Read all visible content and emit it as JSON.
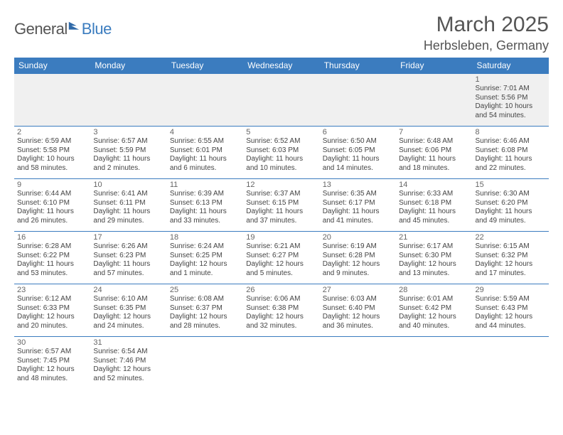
{
  "logo": {
    "part1": "General",
    "part2": "Blue"
  },
  "title": "March 2025",
  "location": "Herbsleben, Germany",
  "colors": {
    "header_bg": "#3b7cbf",
    "header_text": "#ffffff",
    "border": "#3b7cbf",
    "blank_bg": "#f0f0f0",
    "text": "#444444",
    "title_text": "#555555"
  },
  "weekdays": [
    "Sunday",
    "Monday",
    "Tuesday",
    "Wednesday",
    "Thursday",
    "Friday",
    "Saturday"
  ],
  "weeks": [
    [
      null,
      null,
      null,
      null,
      null,
      null,
      {
        "d": "1",
        "sr": "Sunrise: 7:01 AM",
        "ss": "Sunset: 5:56 PM",
        "dl1": "Daylight: 10 hours",
        "dl2": "and 54 minutes."
      }
    ],
    [
      {
        "d": "2",
        "sr": "Sunrise: 6:59 AM",
        "ss": "Sunset: 5:58 PM",
        "dl1": "Daylight: 10 hours",
        "dl2": "and 58 minutes."
      },
      {
        "d": "3",
        "sr": "Sunrise: 6:57 AM",
        "ss": "Sunset: 5:59 PM",
        "dl1": "Daylight: 11 hours",
        "dl2": "and 2 minutes."
      },
      {
        "d": "4",
        "sr": "Sunrise: 6:55 AM",
        "ss": "Sunset: 6:01 PM",
        "dl1": "Daylight: 11 hours",
        "dl2": "and 6 minutes."
      },
      {
        "d": "5",
        "sr": "Sunrise: 6:52 AM",
        "ss": "Sunset: 6:03 PM",
        "dl1": "Daylight: 11 hours",
        "dl2": "and 10 minutes."
      },
      {
        "d": "6",
        "sr": "Sunrise: 6:50 AM",
        "ss": "Sunset: 6:05 PM",
        "dl1": "Daylight: 11 hours",
        "dl2": "and 14 minutes."
      },
      {
        "d": "7",
        "sr": "Sunrise: 6:48 AM",
        "ss": "Sunset: 6:06 PM",
        "dl1": "Daylight: 11 hours",
        "dl2": "and 18 minutes."
      },
      {
        "d": "8",
        "sr": "Sunrise: 6:46 AM",
        "ss": "Sunset: 6:08 PM",
        "dl1": "Daylight: 11 hours",
        "dl2": "and 22 minutes."
      }
    ],
    [
      {
        "d": "9",
        "sr": "Sunrise: 6:44 AM",
        "ss": "Sunset: 6:10 PM",
        "dl1": "Daylight: 11 hours",
        "dl2": "and 26 minutes."
      },
      {
        "d": "10",
        "sr": "Sunrise: 6:41 AM",
        "ss": "Sunset: 6:11 PM",
        "dl1": "Daylight: 11 hours",
        "dl2": "and 29 minutes."
      },
      {
        "d": "11",
        "sr": "Sunrise: 6:39 AM",
        "ss": "Sunset: 6:13 PM",
        "dl1": "Daylight: 11 hours",
        "dl2": "and 33 minutes."
      },
      {
        "d": "12",
        "sr": "Sunrise: 6:37 AM",
        "ss": "Sunset: 6:15 PM",
        "dl1": "Daylight: 11 hours",
        "dl2": "and 37 minutes."
      },
      {
        "d": "13",
        "sr": "Sunrise: 6:35 AM",
        "ss": "Sunset: 6:17 PM",
        "dl1": "Daylight: 11 hours",
        "dl2": "and 41 minutes."
      },
      {
        "d": "14",
        "sr": "Sunrise: 6:33 AM",
        "ss": "Sunset: 6:18 PM",
        "dl1": "Daylight: 11 hours",
        "dl2": "and 45 minutes."
      },
      {
        "d": "15",
        "sr": "Sunrise: 6:30 AM",
        "ss": "Sunset: 6:20 PM",
        "dl1": "Daylight: 11 hours",
        "dl2": "and 49 minutes."
      }
    ],
    [
      {
        "d": "16",
        "sr": "Sunrise: 6:28 AM",
        "ss": "Sunset: 6:22 PM",
        "dl1": "Daylight: 11 hours",
        "dl2": "and 53 minutes."
      },
      {
        "d": "17",
        "sr": "Sunrise: 6:26 AM",
        "ss": "Sunset: 6:23 PM",
        "dl1": "Daylight: 11 hours",
        "dl2": "and 57 minutes."
      },
      {
        "d": "18",
        "sr": "Sunrise: 6:24 AM",
        "ss": "Sunset: 6:25 PM",
        "dl1": "Daylight: 12 hours",
        "dl2": "and 1 minute."
      },
      {
        "d": "19",
        "sr": "Sunrise: 6:21 AM",
        "ss": "Sunset: 6:27 PM",
        "dl1": "Daylight: 12 hours",
        "dl2": "and 5 minutes."
      },
      {
        "d": "20",
        "sr": "Sunrise: 6:19 AM",
        "ss": "Sunset: 6:28 PM",
        "dl1": "Daylight: 12 hours",
        "dl2": "and 9 minutes."
      },
      {
        "d": "21",
        "sr": "Sunrise: 6:17 AM",
        "ss": "Sunset: 6:30 PM",
        "dl1": "Daylight: 12 hours",
        "dl2": "and 13 minutes."
      },
      {
        "d": "22",
        "sr": "Sunrise: 6:15 AM",
        "ss": "Sunset: 6:32 PM",
        "dl1": "Daylight: 12 hours",
        "dl2": "and 17 minutes."
      }
    ],
    [
      {
        "d": "23",
        "sr": "Sunrise: 6:12 AM",
        "ss": "Sunset: 6:33 PM",
        "dl1": "Daylight: 12 hours",
        "dl2": "and 20 minutes."
      },
      {
        "d": "24",
        "sr": "Sunrise: 6:10 AM",
        "ss": "Sunset: 6:35 PM",
        "dl1": "Daylight: 12 hours",
        "dl2": "and 24 minutes."
      },
      {
        "d": "25",
        "sr": "Sunrise: 6:08 AM",
        "ss": "Sunset: 6:37 PM",
        "dl1": "Daylight: 12 hours",
        "dl2": "and 28 minutes."
      },
      {
        "d": "26",
        "sr": "Sunrise: 6:06 AM",
        "ss": "Sunset: 6:38 PM",
        "dl1": "Daylight: 12 hours",
        "dl2": "and 32 minutes."
      },
      {
        "d": "27",
        "sr": "Sunrise: 6:03 AM",
        "ss": "Sunset: 6:40 PM",
        "dl1": "Daylight: 12 hours",
        "dl2": "and 36 minutes."
      },
      {
        "d": "28",
        "sr": "Sunrise: 6:01 AM",
        "ss": "Sunset: 6:42 PM",
        "dl1": "Daylight: 12 hours",
        "dl2": "and 40 minutes."
      },
      {
        "d": "29",
        "sr": "Sunrise: 5:59 AM",
        "ss": "Sunset: 6:43 PM",
        "dl1": "Daylight: 12 hours",
        "dl2": "and 44 minutes."
      }
    ],
    [
      {
        "d": "30",
        "sr": "Sunrise: 6:57 AM",
        "ss": "Sunset: 7:45 PM",
        "dl1": "Daylight: 12 hours",
        "dl2": "and 48 minutes."
      },
      {
        "d": "31",
        "sr": "Sunrise: 6:54 AM",
        "ss": "Sunset: 7:46 PM",
        "dl1": "Daylight: 12 hours",
        "dl2": "and 52 minutes."
      },
      null,
      null,
      null,
      null,
      null
    ]
  ]
}
